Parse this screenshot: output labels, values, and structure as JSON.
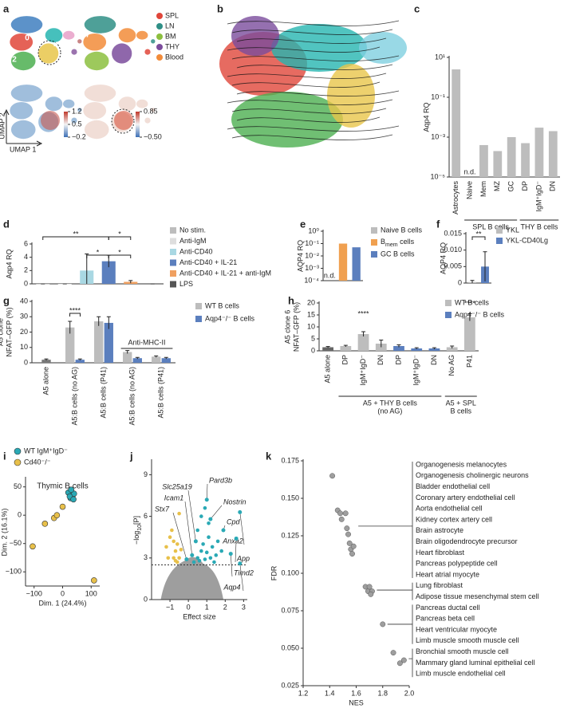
{
  "panel_labels": [
    "a",
    "b",
    "c",
    "d",
    "e",
    "f",
    "g",
    "h",
    "i",
    "j",
    "k"
  ],
  "chart_data": [
    {
      "type": "embedding",
      "clusters": [
        "0",
        "1",
        "2",
        "3",
        "4",
        "5",
        "6",
        "7"
      ],
      "legend": [
        {
          "name": "SPL",
          "color": "#e0463a"
        },
        {
          "name": "LN",
          "color": "#2f8f86"
        },
        {
          "name": "BM",
          "color": "#8cbf3f"
        },
        {
          "name": "THY",
          "color": "#7b4c9c"
        },
        {
          "name": "Blood",
          "color": "#f28c3a"
        }
      ],
      "xlabel": "UMAP 1",
      "ylabel": "UMAP 2",
      "colorbars": [
        {
          "ticks": [
            1.2,
            0.5,
            {
              "value": -0.2,
              "label": "−0.2"
            }
          ]
        },
        {
          "ticks": [
            0.85,
            {
              "value": -0.5,
              "label": "−0.50"
            }
          ]
        }
      ]
    },
    {
      "type": "velocity"
    },
    {
      "type": "bar",
      "log": true,
      "ylabel": "Aqp4 RQ",
      "categories": [
        "Astrocytes",
        "Naive",
        "Mem",
        "MZ",
        "GC",
        "DP",
        "IgM⁺IgD⁻",
        "DN"
      ],
      "values": [
        2.5,
        null,
        0.0004,
        0.0002,
        0.001,
        0.0005,
        0.003,
        0.002
      ],
      "color": "#bdbdbd",
      "ylim": [
        1e-05,
        10
      ],
      "yticks": [
        {
          "value": 10,
          "label": "10¹"
        },
        {
          "value": 0.1,
          "label": "10⁻¹"
        },
        {
          "value": 0.001,
          "label": "10⁻³"
        },
        {
          "value": 1e-05,
          "label": "10⁻⁵"
        }
      ],
      "annotations": [
        "n.d."
      ],
      "groups": [
        [
          "SPL B cells"
        ],
        [
          "THY B cells"
        ]
      ]
    },
    {
      "type": "bar",
      "ylabel": "Aqp4 RQ",
      "legend": true,
      "categories": [
        "No stim.",
        "Anti-IgM",
        "Anti-CD40",
        "Anti-CD40 + IL-21",
        "Anti-CD40 + IL-21 + anti-IgM",
        "LPS"
      ],
      "values": [
        0,
        0,
        2,
        3.4,
        0.3,
        0
      ],
      "errors": [
        0,
        0,
        2.5,
        0.9,
        0.2,
        0
      ],
      "colors": [
        "#bdbdbd",
        "#dedede",
        "#a9d8e3",
        "#5b7fbe",
        "#f0a060",
        "#555555"
      ],
      "ylim": [
        0,
        6
      ],
      "yticks": [
        0,
        2,
        4,
        6
      ],
      "significance": [
        "**",
        "*",
        "*",
        "*"
      ]
    },
    {
      "type": "bar",
      "log": true,
      "ylabel": "AQP4 RQ",
      "legend": true,
      "categories": [
        "Naive B cells",
        [
          "B",
          "mem",
          " cells"
        ],
        "GC B cells"
      ],
      "values": [
        null,
        0.1,
        0.05
      ],
      "colors": [
        "#bdbdbd",
        "#f0a050",
        "#5b7fbe"
      ],
      "ylim": [
        0.0001,
        1
      ],
      "yticks": [
        {
          "value": 1,
          "label": "10⁰"
        },
        {
          "value": 0.1,
          "label": "10⁻¹"
        },
        {
          "value": 0.01,
          "label": "10⁻²"
        },
        {
          "value": 0.001,
          "label": "10⁻³"
        },
        {
          "value": 0.0001,
          "label": "10⁻⁴"
        }
      ],
      "annotations": [
        "n.d."
      ]
    },
    {
      "type": "bar",
      "ylabel": "AQP4 RQ",
      "legend": true,
      "categories": [
        "YKL",
        "YKL-CD40Lg"
      ],
      "values": [
        0.0003,
        0.005
      ],
      "errors": [
        0.0005,
        0.0045
      ],
      "colors": [
        "#bdbdbd",
        "#5b7fbe"
      ],
      "ylim": [
        0,
        0.015
      ],
      "yticks": [
        0,
        0.005,
        {
          "value": 0.01,
          "label": "0.010"
        },
        0.015
      ],
      "significance": [
        "**"
      ]
    },
    {
      "type": "bar",
      "ylabel": [
        "A5 clone",
        "NFAT–GFP (%)"
      ],
      "categories": [
        "A5 alone",
        "A5:B cells (no AG)",
        "A5:B cells (P41)",
        "A5:B cells (no AG)",
        "A5:B cells (P41)"
      ],
      "series": [
        {
          "name": "WT B cells",
          "color": "#bdbdbd",
          "values": [
            2,
            23,
            27,
            7,
            4
          ],
          "errors": [
            0.5,
            4,
            3,
            1,
            0.5
          ]
        },
        {
          "name": "Aqp4⁻/⁻ B cells",
          "color": "#5b7fbe",
          "values": [
            null,
            2,
            26,
            3,
            3
          ],
          "errors": [
            null,
            0.5,
            4,
            0.5,
            0.5
          ]
        }
      ],
      "ylim": [
        0,
        40
      ],
      "yticks": [
        0,
        10,
        20,
        30,
        40
      ],
      "significance": [
        "****"
      ],
      "brackets": [
        "Anti-MHC-II"
      ]
    },
    {
      "type": "bar",
      "ylabel": [
        "A5 clone 6",
        "NFAT–GFP (%)"
      ],
      "categories": [
        "A5 alone",
        "DP",
        "IgM⁺IgD⁻",
        "DN",
        "DP",
        "IgM⁺IgD⁻",
        "DN",
        "No AG",
        "P41"
      ],
      "values": [
        1.5,
        2,
        7,
        3,
        2,
        1,
        1,
        1.5,
        14
      ],
      "errors": [
        0.3,
        0.3,
        1,
        1.5,
        0.5,
        0.3,
        0.3,
        0.5,
        1.5
      ],
      "colors": [
        "#666666",
        "#bdbdbd",
        "#bdbdbd",
        "#bdbdbd",
        "#5b7fbe",
        "#5b7fbe",
        "#5b7fbe",
        "#bdbdbd",
        "#bdbdbd"
      ],
      "legend": [
        {
          "name": "WT B cells",
          "color": "#bdbdbd"
        },
        {
          "name": "Aqp4⁻/⁻ B cells",
          "color": "#5b7fbe"
        }
      ],
      "ylim": [
        0,
        20
      ],
      "yticks": [
        0,
        5,
        10,
        15,
        20
      ],
      "significance": [
        "****",
        "****"
      ],
      "groups": [
        [
          "A5 + THY B cells",
          "(no AG)"
        ],
        [
          "A5 + SPL",
          "B cells"
        ]
      ]
    },
    {
      "type": "scatter",
      "title": "Thymic B cells",
      "xlabel": "Dim. 1 (24.4%)",
      "ylabel": "Dim. 2 (16.1%)",
      "series": [
        {
          "name": "WT IgM⁺IgD⁻",
          "color": "#2aa9b5",
          "x": [
            20,
            28,
            35,
            40,
            30,
            25,
            38
          ],
          "y": [
            40,
            30,
            35,
            38,
            45,
            33,
            28
          ]
        },
        {
          "name": "Cd40⁻/⁻",
          "color": "#e8c04a",
          "x": [
            -105,
            -62,
            -30,
            -20,
            0,
            110
          ],
          "y": [
            -55,
            -15,
            -5,
            0,
            15,
            -115
          ]
        }
      ],
      "xlim": [
        -130,
        130
      ],
      "ylim": [
        -125,
        65
      ],
      "xticks": [
        {
          "value": -100,
          "label": "−100"
        },
        0,
        100
      ],
      "yticks": [
        {
          "value": -100,
          "label": "−100"
        },
        {
          "value": -50,
          "label": "−50"
        },
        0,
        50
      ]
    },
    {
      "type": "volcano",
      "xlabel": "Effect size",
      "ylabel": [
        "−log",
        "10",
        "[P]"
      ],
      "xlim": [
        -2,
        3.2
      ],
      "ylim": [
        0,
        10
      ],
      "xticks": [
        {
          "value": -1,
          "label": "−1"
        },
        0,
        1,
        2,
        3
      ],
      "yticks": [
        0,
        3,
        6,
        9
      ],
      "threshold": 2.5,
      "up": {
        "color": "#2aa9b5",
        "x": [
          0.5,
          0.6,
          0.7,
          0.8,
          0.9,
          1.0,
          1.1,
          1.2,
          1.3,
          1.4,
          1.5,
          0.5,
          0.7,
          1.6,
          1.8,
          0.3,
          0.9,
          1.1
        ],
        "y": [
          3,
          2.8,
          3.5,
          4,
          2.9,
          3.4,
          4.5,
          3,
          3.8,
          2.7,
          3.2,
          5,
          6,
          4.2,
          3.5,
          2.7,
          6.6,
          5.5
        ]
      },
      "down": {
        "color": "#e8c04a",
        "x": [
          -0.5,
          -0.6,
          -0.7,
          -0.8,
          -0.9,
          -1,
          -0.6,
          -0.4,
          -1.1,
          -0.8,
          -0.5,
          -0.7,
          -1.2
        ],
        "y": [
          3,
          4,
          3.5,
          3,
          5,
          4.5,
          2.7,
          3.6,
          3,
          4.2,
          6.2,
          2.8,
          3.8
        ]
      },
      "genes": [
        {
          "label": "Slc25a19",
          "x": 0.4,
          "y": 4.2
        },
        {
          "label": "Pard3b",
          "x": 1.0,
          "y": 7.2
        },
        {
          "label": "Icam1",
          "x": 0.2,
          "y": 3.2
        },
        {
          "label": "Nostrin",
          "x": 1.2,
          "y": 5.8
        },
        {
          "label": "Stx7",
          "x": -0.1,
          "y": 2.9
        },
        {
          "label": "Cpd",
          "x": 1.9,
          "y": 5.0
        },
        {
          "label": "Anxa2",
          "x": 2.8,
          "y": 6.3
        },
        {
          "label": "App",
          "x": 2.6,
          "y": 4.4
        },
        {
          "label": "Timd2",
          "x": 2.3,
          "y": 3.3
        },
        {
          "label": "Aqp4",
          "x": 2.8,
          "y": 2.6
        }
      ]
    },
    {
      "type": "nes",
      "xlabel": "NES",
      "ylabel": "FDR",
      "xlim": [
        1.2,
        2.0
      ],
      "ylim": [
        0.025,
        0.175
      ],
      "xticks": [
        1.2,
        1.4,
        1.6,
        1.8,
        {
          "value": 2,
          "label": "2.0"
        }
      ],
      "yticks": [
        0.025,
        {
          "value": 0.05,
          "label": "0.050"
        },
        0.075,
        {
          "value": 0.1,
          "label": "0.100"
        },
        0.125,
        {
          "value": 0.15,
          "label": "0.150"
        },
        0.175
      ],
      "x": [
        1.42,
        1.46,
        1.48,
        1.49,
        1.52,
        1.53,
        1.54,
        1.55,
        1.56,
        1.58,
        1.57,
        1.67,
        1.69,
        1.7,
        1.72,
        1.71,
        1.8,
        1.88,
        1.93,
        1.96
      ],
      "y": [
        0.165,
        0.142,
        0.14,
        0.136,
        0.14,
        0.13,
        0.126,
        0.12,
        0.116,
        0.118,
        0.113,
        0.091,
        0.088,
        0.091,
        0.088,
        0.086,
        0.066,
        0.047,
        0.04,
        0.042
      ],
      "labels": [
        "Organogenesis melanocytes",
        "Organogenesis cholinergic neurons",
        "Bladder endothelial cell",
        "Coronary artery endothelial cell",
        "Aorta endothelial cell",
        "Kidney cortex artery cell",
        "Brain astrocyte",
        "Brain oligodendrocyte precursor",
        "Heart fibroblast",
        "Pancreas polypeptide cell",
        "Heart atrial myocyte",
        "Lung fibroblast",
        "Adipose tissue mesenchymal stem cell",
        "Pancreas ductal cell",
        "Pancreas beta cell",
        "Heart ventricular myocyte",
        "Limb muscle smooth muscle cell",
        "Bronchial smooth muscle cell",
        "Mammary gland luminal epithelial cell",
        "Limb muscle endothelial cell"
      ]
    }
  ]
}
